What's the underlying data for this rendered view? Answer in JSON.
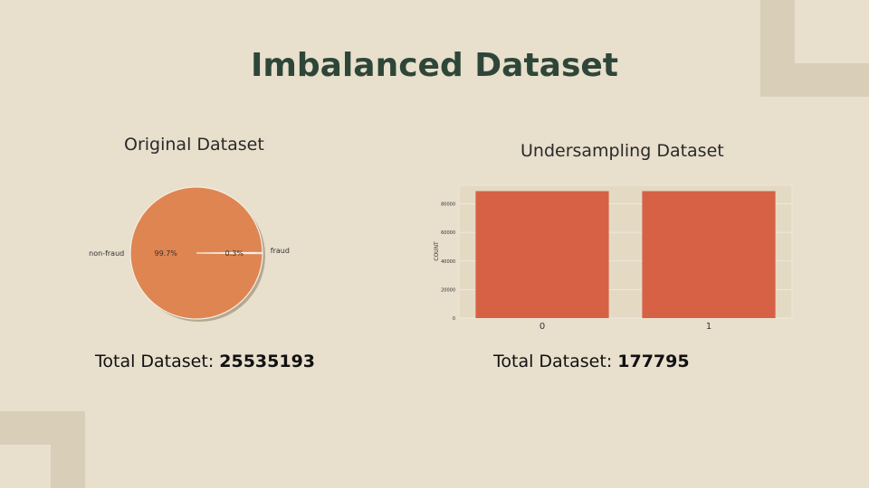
{
  "slide": {
    "title": "Imbalanced Dataset",
    "left": {
      "subtitle": "Original Dataset",
      "total_label": "Total Dataset: ",
      "total_value": "25535193"
    },
    "right": {
      "subtitle": "Undersampling Dataset",
      "total_label": "Total Dataset: ",
      "total_value": "177795"
    }
  },
  "chart_data": [
    {
      "type": "pie",
      "labels": [
        "non-fraud",
        "fraud"
      ],
      "values": [
        99.7,
        0.3
      ],
      "value_labels": [
        "99.7%",
        "0.3%"
      ],
      "color": "#df8552"
    },
    {
      "type": "bar",
      "categories": [
        "0",
        "1"
      ],
      "values": [
        88898,
        88897
      ],
      "ylabel": "COUNT",
      "yticks": [
        0,
        20000,
        40000,
        60000,
        80000
      ],
      "ylim": [
        0,
        93000
      ],
      "grid": true,
      "color": "#d66145"
    }
  ]
}
